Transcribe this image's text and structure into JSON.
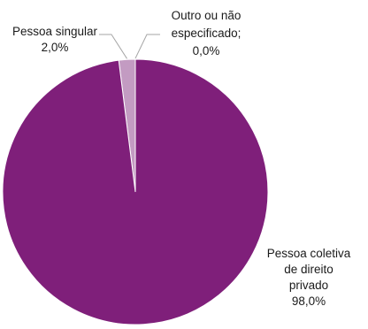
{
  "chart_data": {
    "type": "pie",
    "slices": [
      {
        "label_lines": [
          "Pessoa coletiva",
          "de direito",
          "privado"
        ],
        "value": 98.0,
        "value_label": "98,0%",
        "color": "#7f1f7a"
      },
      {
        "label_lines": [
          "Pessoa singular"
        ],
        "value": 2.0,
        "value_label": "2,0%",
        "color": "#c39bc2"
      },
      {
        "label_lines": [
          "Outro ou não",
          "especificado;"
        ],
        "value": 0.0,
        "value_label": "0,0%",
        "color": "#5e0f5a"
      }
    ],
    "legend": false
  }
}
